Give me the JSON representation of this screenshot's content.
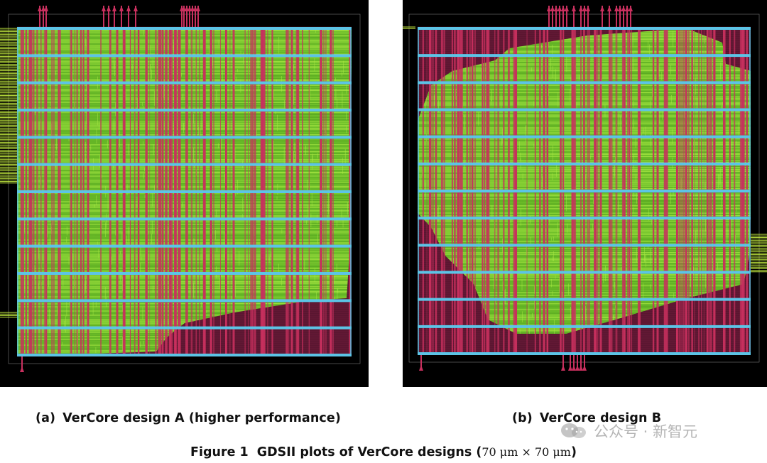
{
  "figure": {
    "number_label": "Figure 1",
    "caption_text": "GDSII plots of VerCore designs",
    "caption_math": "70 μm × 70 μm",
    "paren_open": "(",
    "paren_close": ")"
  },
  "panels": [
    {
      "tag": "(a)",
      "caption": "VerCore design A (higher performance)"
    },
    {
      "tag": "(b)",
      "caption": "VerCore design B"
    }
  ],
  "watermark": {
    "text": "公众号 · 新智元",
    "icon": "wechat-icon"
  },
  "colors": {
    "background": "#000000",
    "routing_green": "#8ee03a",
    "metal_pink": "#c8305e",
    "power_rail_blue": "#5cc4e6",
    "substrate_maroon": "#5a1630"
  }
}
